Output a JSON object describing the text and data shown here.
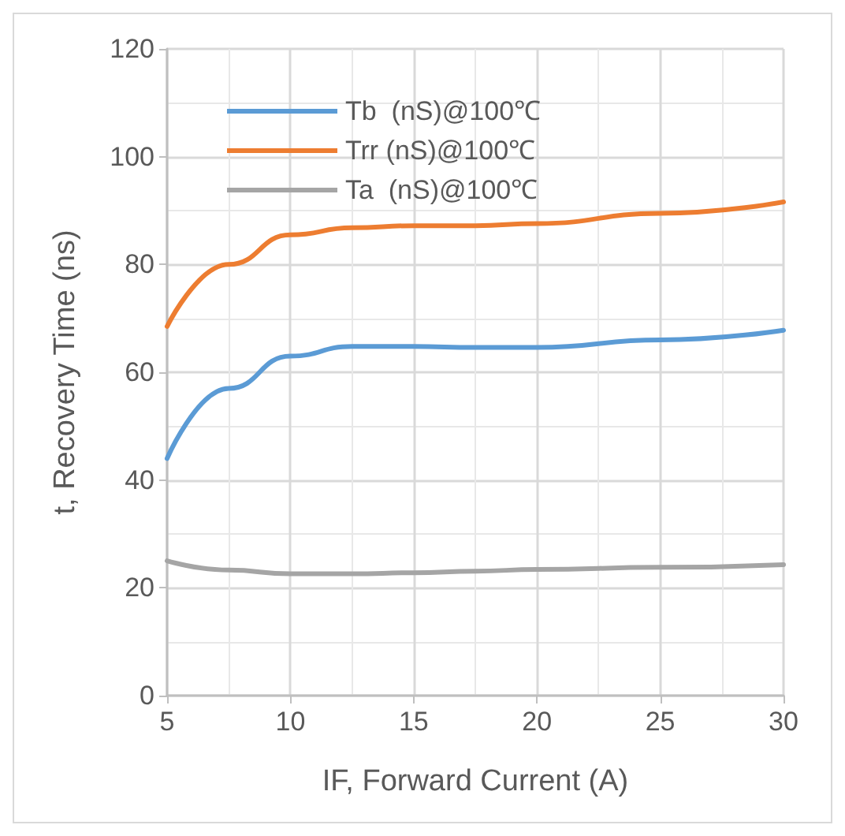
{
  "chart_data": {
    "type": "line",
    "xlabel": "IF, Forward Current (A)",
    "ylabel": "t, Recovery Time (ns)",
    "x": [
      5,
      7.5,
      10,
      12.5,
      15,
      17.5,
      20,
      25,
      30
    ],
    "series": [
      {
        "name": "Tb  (nS)@100℃",
        "color": "#5b9bd5",
        "values": [
          44,
          57,
          63,
          64.8,
          64.8,
          64.6,
          64.6,
          66,
          67.8
        ]
      },
      {
        "name": "Trr (nS)@100℃",
        "color": "#ed7d31",
        "values": [
          68.5,
          80,
          85.5,
          86.8,
          87.2,
          87.2,
          87.6,
          89.5,
          91.6
        ]
      },
      {
        "name": "Ta  (nS)@100℃",
        "color": "#a5a5a5",
        "values": [
          25,
          23.3,
          22.6,
          22.6,
          22.8,
          23.1,
          23.4,
          23.8,
          24.3
        ]
      }
    ],
    "xlim": [
      5,
      30
    ],
    "xticks": [
      5,
      10,
      15,
      20,
      25,
      30
    ],
    "ylim": [
      0,
      120
    ],
    "yticks": [
      0,
      20,
      40,
      60,
      80,
      100,
      120
    ],
    "grid": true,
    "legend": "top left",
    "marker": "none",
    "line_style": "solid"
  }
}
